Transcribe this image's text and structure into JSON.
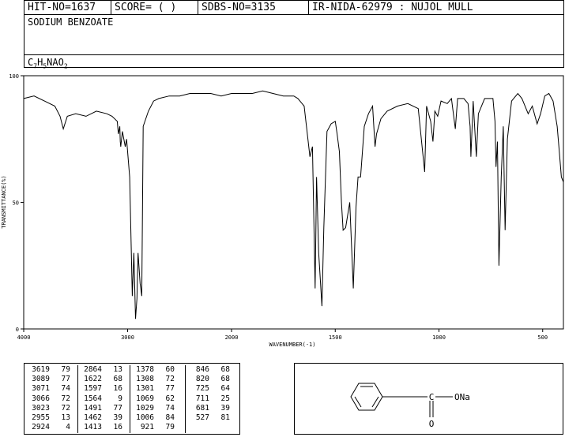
{
  "header": {
    "hit_no": "HIT-NO=1637",
    "score": "SCORE=  (   )",
    "sdbs_no": "SDBS-NO=3135",
    "ir_nida": "IR-NIDA-62979 : NUJOL MULL",
    "compound_name": "SODIUM BENZOATE",
    "formula": {
      "c": "C",
      "c_n": "7",
      "h": "H",
      "h_n": "5",
      "rest": "NAO",
      "o_n": "2"
    }
  },
  "chart_data": {
    "type": "line",
    "title": "",
    "xlabel": "WAVENUMBER(-1)",
    "ylabel": "TRANSMITTANCE(%)",
    "xlim": [
      4000,
      400
    ],
    "ylim": [
      0,
      100
    ],
    "x_ticks": [
      4000,
      3000,
      2000,
      1500,
      1000,
      500
    ],
    "y_ticks": [
      0,
      50,
      100
    ],
    "x_tick_labels": [
      "4000",
      "3000",
      "2000",
      "1500",
      "1000",
      "500"
    ],
    "y_tick_labels": [
      "0",
      "50",
      "100"
    ],
    "series": [
      {
        "x": [
          4000,
          3900,
          3800,
          3700,
          3650,
          3619,
          3580,
          3500,
          3400,
          3300,
          3200,
          3150,
          3100,
          3089,
          3075,
          3071,
          3066,
          3050,
          3023,
          3010,
          2980,
          2955,
          2940,
          2924,
          2910,
          2900,
          2880,
          2864,
          2850,
          2800,
          2750,
          2700,
          2600,
          2500,
          2400,
          2300,
          2200,
          2100,
          2000,
          1900,
          1850,
          1800,
          1750,
          1700,
          1680,
          1650,
          1622,
          1610,
          1597,
          1590,
          1580,
          1564,
          1555,
          1540,
          1520,
          1500,
          1491,
          1480,
          1470,
          1462,
          1450,
          1440,
          1430,
          1413,
          1400,
          1390,
          1378,
          1360,
          1340,
          1320,
          1308,
          1301,
          1280,
          1250,
          1200,
          1150,
          1100,
          1069,
          1060,
          1050,
          1040,
          1029,
          1020,
          1006,
          990,
          960,
          940,
          921,
          910,
          880,
          860,
          850,
          846,
          835,
          820,
          810,
          780,
          760,
          740,
          730,
          725,
          718,
          711,
          700,
          690,
          681,
          670,
          650,
          620,
          600,
          570,
          550,
          527,
          510,
          490,
          470,
          450,
          430,
          420,
          410,
          400
        ],
        "y": [
          91,
          92,
          90,
          88,
          84,
          79,
          84,
          85,
          84,
          86,
          85,
          84,
          82,
          77,
          80,
          74,
          72,
          78,
          72,
          75,
          60,
          13,
          30,
          4,
          12,
          30,
          18,
          13,
          80,
          86,
          90,
          91,
          92,
          92,
          93,
          93,
          93,
          92,
          93,
          93,
          94,
          93,
          92,
          92,
          91,
          88,
          68,
          72,
          16,
          60,
          30,
          9,
          40,
          78,
          81,
          82,
          77,
          70,
          50,
          39,
          40,
          45,
          50,
          16,
          48,
          60,
          60,
          80,
          85,
          88,
          72,
          77,
          83,
          86,
          88,
          89,
          87,
          62,
          88,
          85,
          82,
          74,
          86,
          84,
          90,
          89,
          91,
          79,
          91,
          91,
          89,
          80,
          68,
          90,
          68,
          85,
          91,
          91,
          91,
          82,
          64,
          74,
          25,
          60,
          80,
          39,
          75,
          90,
          93,
          91,
          85,
          88,
          81,
          85,
          92,
          93,
          90,
          80,
          70,
          60,
          58
        ]
      }
    ]
  },
  "peaks": [
    [
      [
        "3619",
        "79"
      ],
      [
        "3089",
        "77"
      ],
      [
        "3071",
        "74"
      ],
      [
        "3066",
        "72"
      ],
      [
        "3023",
        "72"
      ],
      [
        "2955",
        "13"
      ],
      [
        "2924",
        "4"
      ]
    ],
    [
      [
        "2864",
        "13"
      ],
      [
        "1622",
        "68"
      ],
      [
        "1597",
        "16"
      ],
      [
        "1564",
        "9"
      ],
      [
        "1491",
        "77"
      ],
      [
        "1462",
        "39"
      ],
      [
        "1413",
        "16"
      ]
    ],
    [
      [
        "1378",
        "60"
      ],
      [
        "1308",
        "72"
      ],
      [
        "1301",
        "77"
      ],
      [
        "1069",
        "62"
      ],
      [
        "1029",
        "74"
      ],
      [
        "1006",
        "84"
      ],
      [
        "921",
        "79"
      ]
    ],
    [
      [
        "846",
        "68"
      ],
      [
        "820",
        "68"
      ],
      [
        "725",
        "64"
      ],
      [
        "711",
        "25"
      ],
      [
        "681",
        "39"
      ],
      [
        "527",
        "81"
      ]
    ]
  ],
  "structure": {
    "substituent": "C",
    "carbonyl_o": "O",
    "salt": "ONa"
  }
}
